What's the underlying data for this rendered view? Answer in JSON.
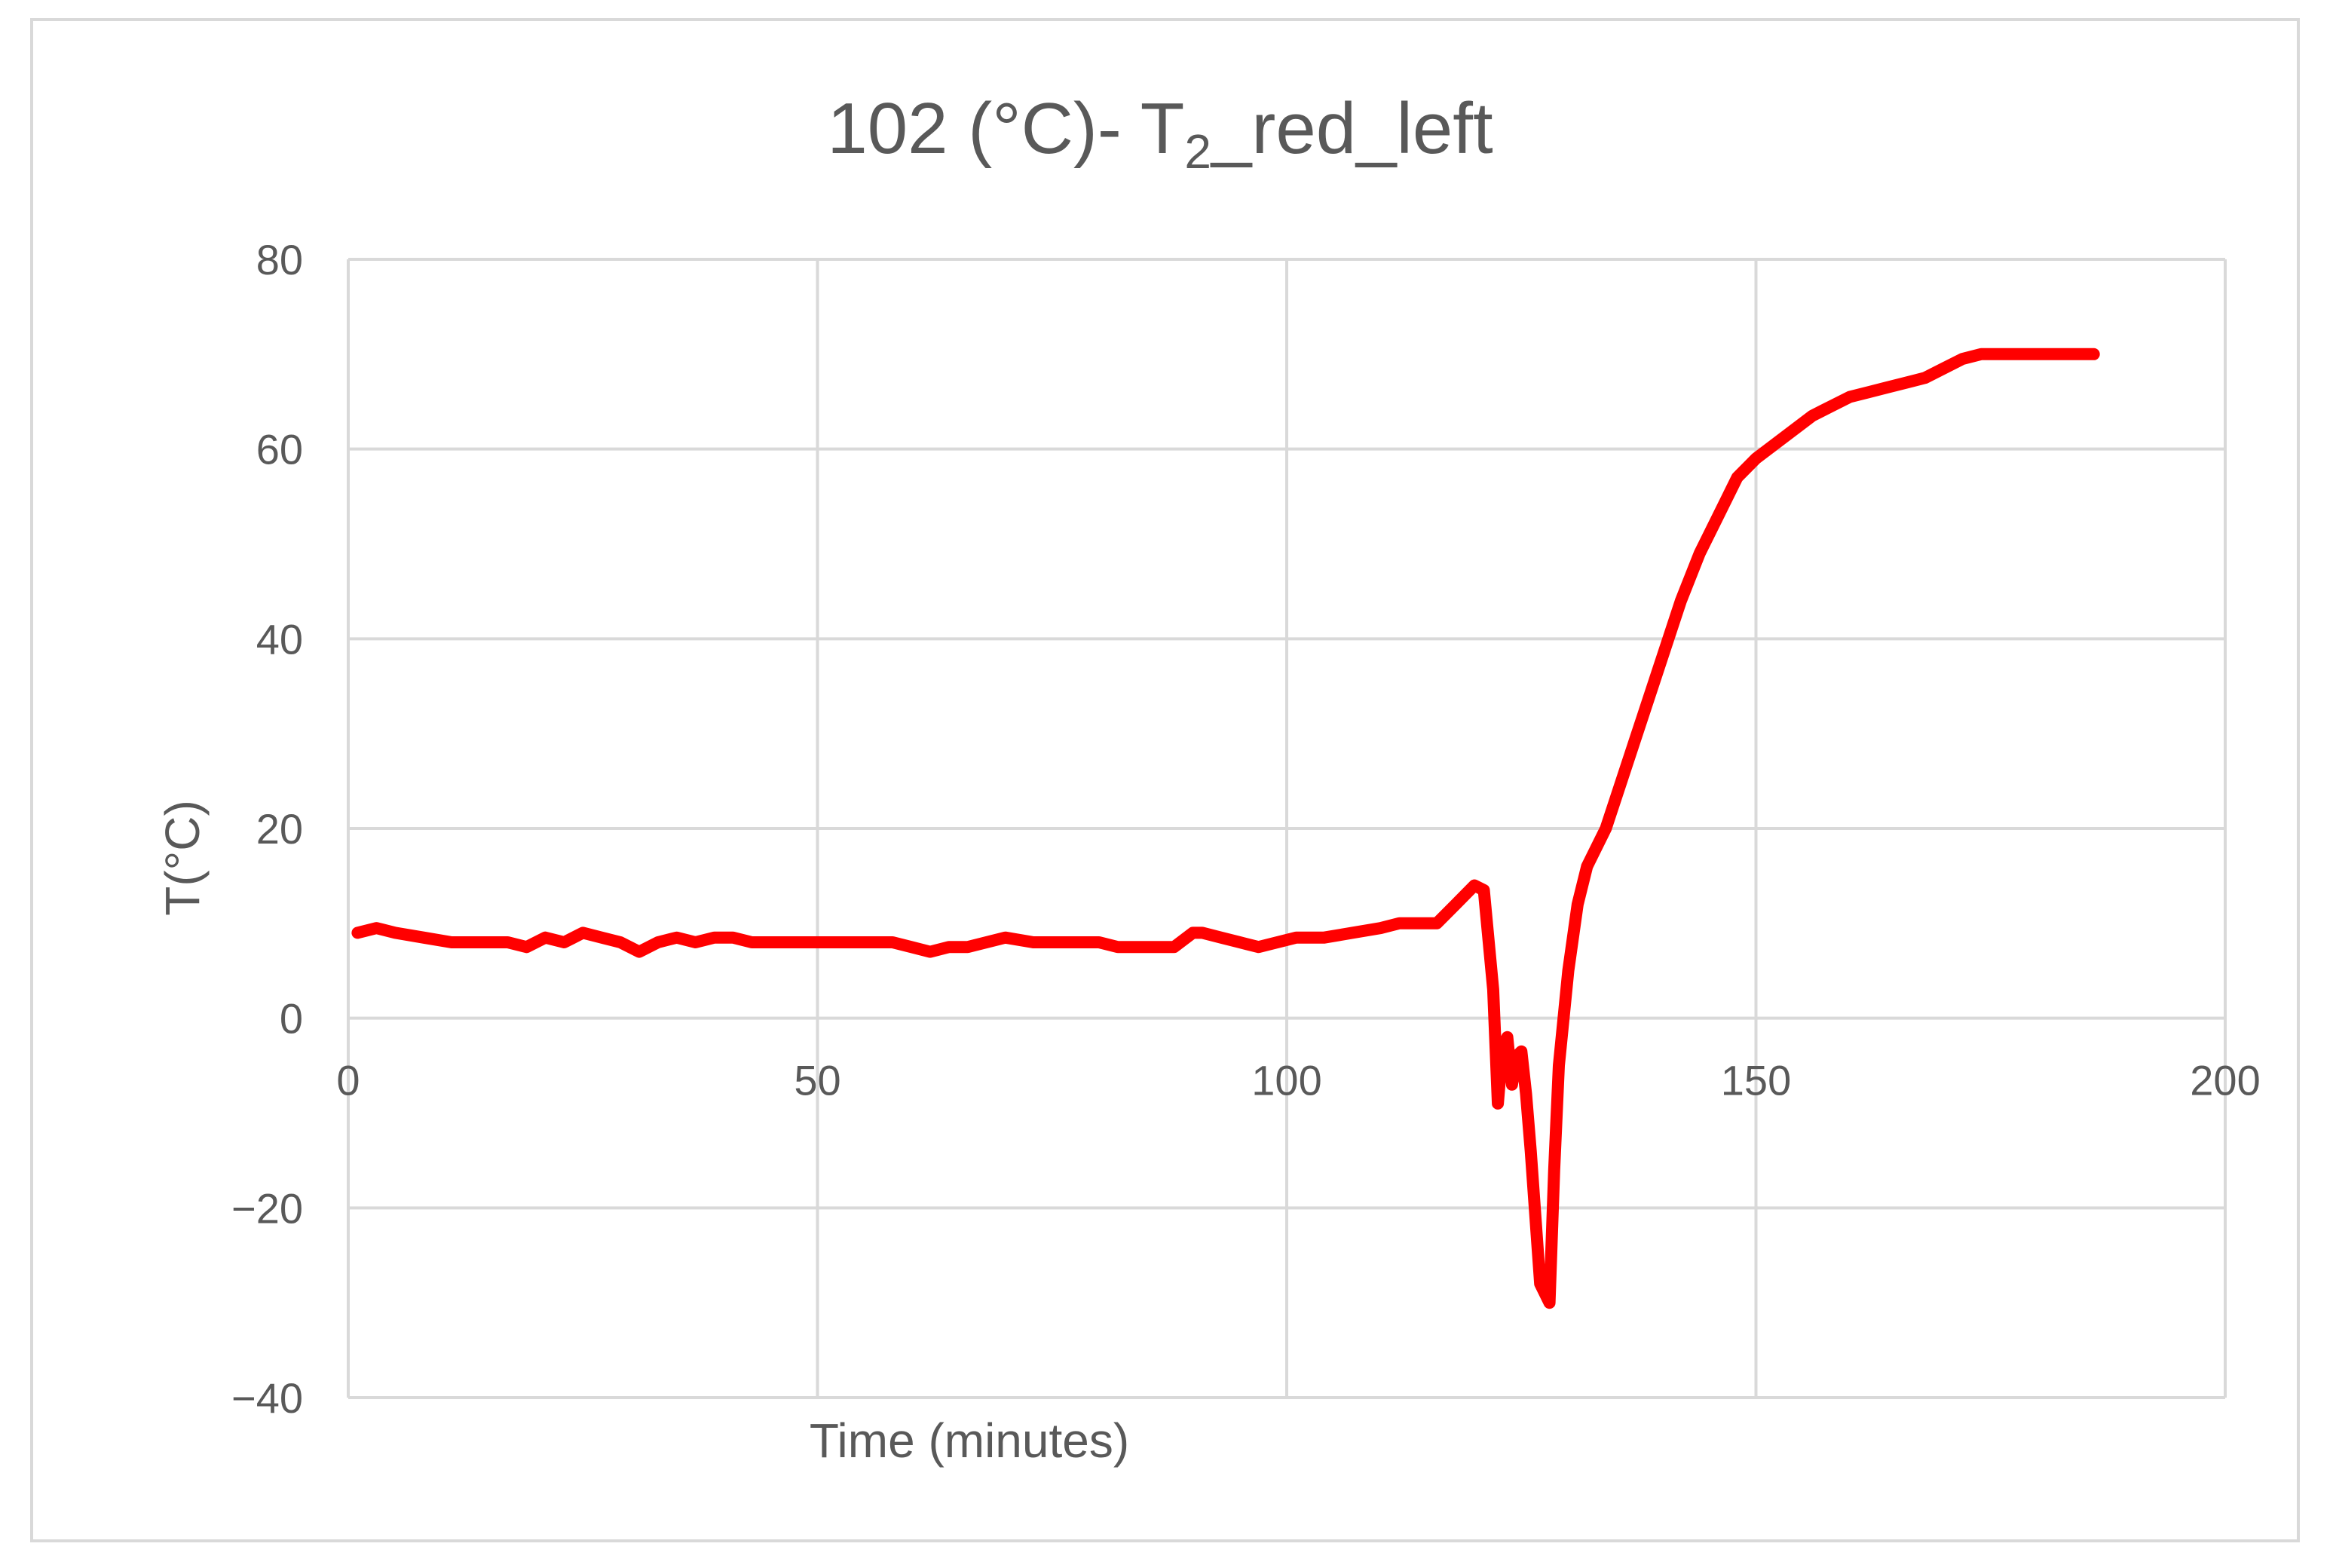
{
  "chart_data": {
    "type": "line",
    "title": {
      "main": "102 (°C)- T",
      "subscript": "2",
      "suffix": "_red_left"
    },
    "xlabel": "Time (minutes)",
    "ylabel": "T(°C)",
    "xlim": [
      0,
      200
    ],
    "ylim": [
      -40,
      80
    ],
    "x_ticks": [
      0,
      50,
      100,
      150,
      200
    ],
    "y_ticks": [
      -40,
      -20,
      0,
      20,
      40,
      60,
      80
    ],
    "x_tick_labels": [
      "0",
      "50",
      "100",
      "150",
      "200"
    ],
    "y_tick_labels": [
      "−40",
      "−20",
      "0",
      "20",
      "40",
      "60",
      "80"
    ],
    "grid": true,
    "series": [
      {
        "color": "#ff0000",
        "x": [
          1,
          3,
          5,
          8,
          11,
          14,
          17,
          19,
          21,
          23,
          25,
          27,
          29,
          31,
          33,
          35,
          37,
          39,
          41,
          43,
          45,
          47,
          50,
          53,
          55,
          58,
          60,
          62,
          64,
          66,
          68,
          70,
          73,
          76,
          80,
          82,
          85,
          88,
          90,
          91,
          93,
          95,
          97,
          99,
          101,
          104,
          107,
          110,
          112,
          114,
          116,
          118,
          120,
          121,
          122,
          122.5,
          123,
          123.5,
          124,
          124.5,
          125,
          125.5,
          126,
          127,
          128,
          128.5,
          129,
          130,
          131,
          132,
          134,
          136,
          138,
          140,
          142,
          144,
          146,
          148,
          150,
          152,
          154,
          156,
          158,
          160,
          162,
          164,
          166,
          168,
          170,
          172,
          174,
          176,
          178,
          180,
          182,
          184,
          186
        ],
        "y": [
          9,
          9.5,
          9,
          8.5,
          8,
          8,
          8,
          7.5,
          8.5,
          8,
          9,
          8.5,
          8,
          7,
          8,
          8.5,
          8,
          8.5,
          8.5,
          8,
          8,
          8,
          8,
          8,
          8,
          8,
          7.5,
          7,
          7.5,
          7.5,
          8,
          8.5,
          8,
          8,
          8,
          7.5,
          7.5,
          7.5,
          9,
          9,
          8.5,
          8,
          7.5,
          8,
          8.5,
          8.5,
          9,
          9.5,
          10,
          10,
          10,
          12,
          14,
          13.5,
          3,
          -9,
          -3,
          -2,
          -7,
          -4,
          -3.5,
          -8,
          -14,
          -28,
          -30,
          -16,
          -5,
          5,
          12,
          16,
          20,
          26,
          32,
          38,
          44,
          49,
          53,
          57,
          59,
          60.5,
          62,
          63.5,
          64.5,
          65.5,
          66,
          66.5,
          67,
          67.5,
          68.5,
          69.5,
          70,
          70,
          70,
          70,
          70,
          70,
          70
        ]
      }
    ]
  }
}
